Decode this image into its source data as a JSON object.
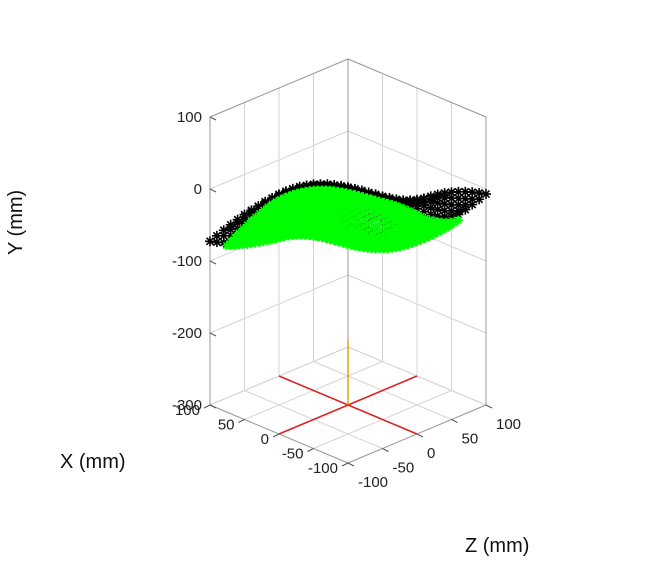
{
  "chart_data": {
    "type": "scatter",
    "title": "",
    "xlabel": "X (mm)",
    "ylabel": "Y (mm)",
    "zlabel": "Z (mm)",
    "xlim": [
      -100,
      100
    ],
    "ylim": [
      -300,
      100
    ],
    "zlim": [
      -100,
      100
    ],
    "xticks": [
      "-100",
      "-50",
      "0",
      "50",
      "100"
    ],
    "yticks": [
      "-300",
      "-200",
      "-100",
      "0",
      "100"
    ],
    "zticks": [
      "-100",
      "-50",
      "0",
      "50",
      "100"
    ],
    "grid": true,
    "marker": "*",
    "series": [
      {
        "color": "#000000",
        "shape": "surface mesh",
        "x_range": [
          -100,
          100
        ],
        "z_range": [
          -100,
          100
        ],
        "y_range": [
          -150,
          90
        ]
      },
      {
        "color": "#00ff00",
        "shape": "surface mesh (front portion)",
        "x_range": [
          -100,
          80
        ],
        "z_range": [
          -100,
          60
        ],
        "y_range": [
          -210,
          80
        ]
      }
    ],
    "annotations": [
      {
        "type": "cross",
        "color": "#dd2222",
        "plane": "floor",
        "at": {
          "x": 0,
          "z": 0,
          "y": -300
        }
      },
      {
        "type": "vertical-line",
        "color": "#d9a000",
        "at": {
          "x": 0,
          "z": 0
        },
        "y_range": [
          -300,
          -210
        ]
      }
    ]
  }
}
